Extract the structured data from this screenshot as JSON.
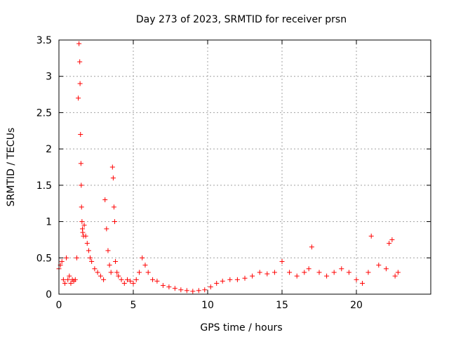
{
  "chart_data": {
    "type": "scatter",
    "title": "Day 273 of 2023, SRMTID for receiver prsn",
    "xlabel": "GPS time / hours",
    "ylabel": "SRMTID / TECUs",
    "xlim": [
      0,
      25
    ],
    "ylim": [
      0,
      3.5
    ],
    "x_ticks": [
      0,
      5,
      10,
      15,
      20
    ],
    "x_tick_labels": [
      "0",
      "5",
      "10",
      "15",
      "20"
    ],
    "y_ticks": [
      0,
      0.5,
      1,
      1.5,
      2,
      2.5,
      3,
      3.5
    ],
    "y_tick_labels": [
      "0",
      "0.5",
      "1",
      "1.5",
      "2",
      "2.5",
      "3",
      "3.5"
    ],
    "grid": true,
    "marker": "+",
    "color": "#ff0000",
    "series": [
      {
        "name": "SRMTID",
        "x": [
          0.0,
          0.1,
          0.2,
          0.3,
          0.4,
          0.5,
          0.6,
          0.7,
          0.8,
          0.9,
          1.0,
          1.1,
          1.2,
          1.3,
          1.35,
          1.4,
          1.42,
          1.45,
          1.48,
          1.5,
          1.52,
          1.55,
          1.58,
          1.6,
          1.65,
          1.7,
          1.8,
          1.9,
          2.0,
          2.1,
          2.2,
          2.4,
          2.6,
          2.8,
          3.0,
          3.1,
          3.2,
          3.3,
          3.4,
          3.5,
          3.6,
          3.65,
          3.7,
          3.75,
          3.8,
          3.9,
          4.0,
          4.2,
          4.4,
          4.6,
          4.8,
          5.0,
          5.2,
          5.4,
          5.6,
          5.8,
          6.0,
          6.3,
          6.6,
          7.0,
          7.4,
          7.8,
          8.2,
          8.6,
          9.0,
          9.4,
          9.8,
          10.2,
          10.6,
          11.0,
          11.5,
          12.0,
          12.5,
          13.0,
          13.5,
          14.0,
          14.5,
          15.0,
          15.5,
          16.0,
          16.5,
          16.8,
          17.0,
          17.5,
          18.0,
          18.5,
          19.0,
          19.5,
          20.0,
          20.4,
          20.8,
          21.0,
          21.5,
          22.0,
          22.2,
          22.4,
          22.6,
          22.8
        ],
        "y": [
          0.35,
          0.4,
          0.45,
          0.2,
          0.15,
          0.5,
          0.2,
          0.25,
          0.15,
          0.2,
          0.18,
          0.2,
          0.5,
          2.7,
          3.45,
          3.2,
          2.9,
          2.2,
          1.8,
          1.5,
          1.2,
          1.0,
          0.9,
          0.85,
          0.8,
          0.95,
          0.8,
          0.7,
          0.6,
          0.5,
          0.45,
          0.35,
          0.3,
          0.25,
          0.2,
          1.3,
          0.9,
          0.6,
          0.4,
          0.3,
          1.75,
          1.6,
          1.2,
          1.0,
          0.45,
          0.3,
          0.25,
          0.2,
          0.15,
          0.2,
          0.18,
          0.15,
          0.2,
          0.3,
          0.5,
          0.4,
          0.3,
          0.2,
          0.18,
          0.12,
          0.1,
          0.08,
          0.06,
          0.05,
          0.04,
          0.05,
          0.06,
          0.1,
          0.15,
          0.18,
          0.2,
          0.2,
          0.22,
          0.25,
          0.3,
          0.28,
          0.3,
          0.45,
          0.3,
          0.25,
          0.3,
          0.35,
          0.65,
          0.3,
          0.25,
          0.3,
          0.35,
          0.3,
          0.2,
          0.15,
          0.3,
          0.8,
          0.4,
          0.35,
          0.7,
          0.75,
          0.25,
          0.3
        ]
      }
    ]
  }
}
